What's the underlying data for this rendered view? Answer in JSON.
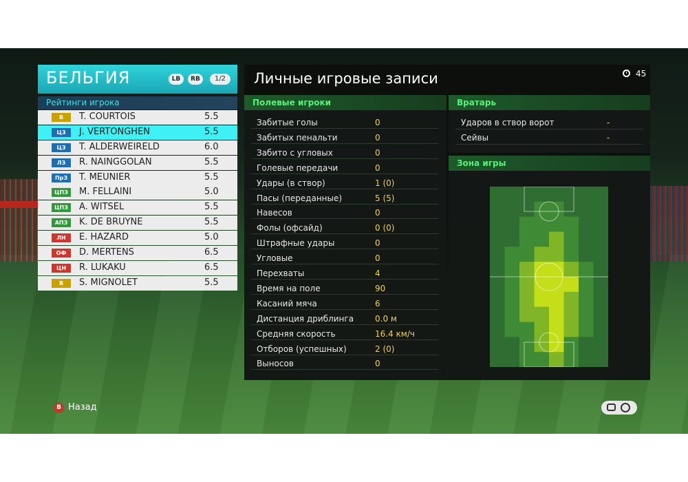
{
  "team": {
    "name": "БЕЛЬГИЯ",
    "lb": "LB",
    "rb": "RB",
    "page": "1/2"
  },
  "ratings_title": "Рейтинги игрока",
  "players": [
    {
      "pos": "В",
      "pos_color": "#c9a200",
      "name": "T. COURTOIS",
      "rating": "5.5",
      "selected": false
    },
    {
      "pos": "ЦЗ",
      "pos_color": "#1f6fb0",
      "name": "J. VERTONGHEN",
      "rating": "5.5",
      "selected": true
    },
    {
      "pos": "ЦЗ",
      "pos_color": "#1f6fb0",
      "name": "T. ALDERWEIRELD",
      "rating": "6.0",
      "selected": false
    },
    {
      "pos": "ЛЗ",
      "pos_color": "#1f6fb0",
      "name": "R. NAINGGOLAN",
      "rating": "5.5",
      "selected": false
    },
    {
      "pos": "ПрЗ",
      "pos_color": "#1f6fb0",
      "name": "T. MEUNIER",
      "rating": "5.5",
      "selected": false
    },
    {
      "pos": "ЦПЗ",
      "pos_color": "#2f9a3a",
      "name": "M. FELLAINI",
      "rating": "5.0",
      "selected": false
    },
    {
      "pos": "ЦПЗ",
      "pos_color": "#2f9a3a",
      "name": "A. WITSEL",
      "rating": "5.5",
      "selected": false
    },
    {
      "pos": "АПЗ",
      "pos_color": "#2f9a3a",
      "name": "K. DE BRUYNE",
      "rating": "5.5",
      "selected": false
    },
    {
      "pos": "ЛН",
      "pos_color": "#d0362b",
      "name": "E. HAZARD",
      "rating": "5.0",
      "selected": false
    },
    {
      "pos": "ОФ",
      "pos_color": "#d0362b",
      "name": "D. MERTENS",
      "rating": "6.5",
      "selected": false
    },
    {
      "pos": "ЦН",
      "pos_color": "#d0362b",
      "name": "R. LUKAKU",
      "rating": "6.5",
      "selected": false
    },
    {
      "pos": "В",
      "pos_color": "#c9a200",
      "name": "S. MIGNOLET",
      "rating": "5.5",
      "selected": false
    }
  ],
  "main_title": "Личные игровые записи",
  "timer": "45",
  "field_title": "Полевые игроки",
  "field_stats": [
    {
      "label": "Забитые голы",
      "value": "0"
    },
    {
      "label": "Забитых пенальти",
      "value": "0"
    },
    {
      "label": "Забито с угловых",
      "value": "0"
    },
    {
      "label": "Голевые передачи",
      "value": "0"
    },
    {
      "label": "Удары (в створ)",
      "value": "1 (0)"
    },
    {
      "label": "Пасы (переданные)",
      "value": "5 (5)"
    },
    {
      "label": "Навесов",
      "value": "0"
    },
    {
      "label": "Фолы (офсайд)",
      "value": "0 (0)"
    },
    {
      "label": "Штрафные удары",
      "value": "0"
    },
    {
      "label": "Угловые",
      "value": "0"
    },
    {
      "label": "Перехваты",
      "value": "4"
    },
    {
      "label": "Время на поле",
      "value": "90"
    },
    {
      "label": "Касаний мяча",
      "value": "6"
    },
    {
      "label": "Дистанция дриблинга",
      "value": "0.0 м"
    },
    {
      "label": "Средняя скорость",
      "value": "16.4 км/ч"
    },
    {
      "label": "Отборов (успешных)",
      "value": "2 (0)"
    },
    {
      "label": "Выносов",
      "value": "0"
    }
  ],
  "gk_title": "Вратарь",
  "gk_stats": [
    {
      "label": "Ударов в створ ворот",
      "value": "-"
    },
    {
      "label": "Сейвы",
      "value": "-"
    }
  ],
  "zone_title": "Зона игры",
  "heatmap": {
    "cols": 8,
    "rows": 12,
    "cells": [
      [
        0,
        0,
        0,
        0,
        0,
        0,
        0,
        0
      ],
      [
        0,
        0,
        0,
        1,
        1,
        0,
        0,
        0
      ],
      [
        0,
        0,
        1,
        1,
        1,
        1,
        0,
        0
      ],
      [
        0,
        0,
        1,
        1,
        2,
        1,
        0,
        0
      ],
      [
        0,
        1,
        1,
        2,
        2,
        1,
        0,
        0
      ],
      [
        0,
        1,
        2,
        3,
        3,
        2,
        1,
        0
      ],
      [
        0,
        1,
        2,
        3,
        3,
        3,
        1,
        0
      ],
      [
        0,
        1,
        2,
        3,
        3,
        2,
        1,
        0
      ],
      [
        0,
        1,
        2,
        2,
        3,
        2,
        1,
        0
      ],
      [
        0,
        1,
        1,
        2,
        3,
        2,
        1,
        0
      ],
      [
        0,
        0,
        1,
        2,
        3,
        1,
        0,
        0
      ],
      [
        0,
        0,
        1,
        1,
        2,
        1,
        0,
        0
      ]
    ],
    "colors": [
      "#2f6d33",
      "#3f8a34",
      "#7fb526",
      "#c4de1a"
    ]
  },
  "footer": {
    "back_button": "B",
    "back_label": "Назад"
  }
}
